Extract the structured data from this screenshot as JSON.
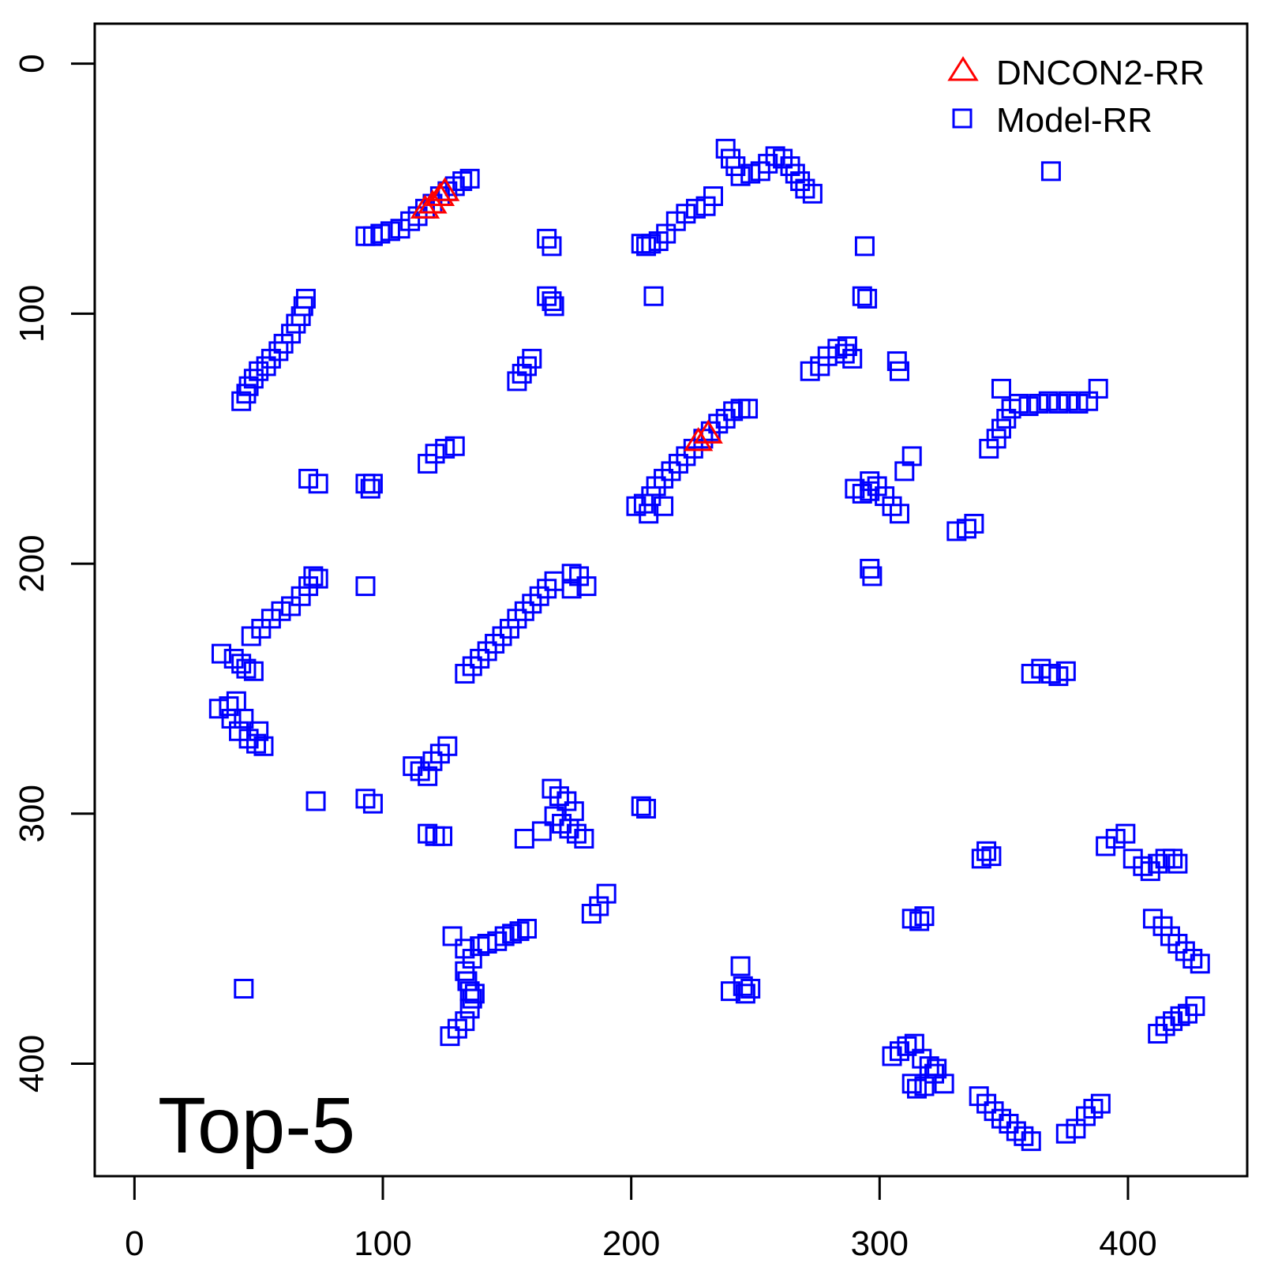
{
  "chart_data": {
    "type": "scatter",
    "title": "",
    "xlabel": "",
    "ylabel": "",
    "annotation": "Top-5",
    "xlim": [
      -16,
      448
    ],
    "ylim": [
      445,
      -16
    ],
    "y_reversed": true,
    "x_ticks": [
      0,
      100,
      200,
      300,
      400
    ],
    "x_tick_labels": [
      "0",
      "100",
      "200",
      "300",
      "400"
    ],
    "y_ticks": [
      0,
      100,
      200,
      300,
      400
    ],
    "y_tick_labels": [
      "0",
      "100",
      "200",
      "300",
      "400"
    ],
    "grid": false,
    "legend_position": "top-right",
    "series": [
      {
        "name": "DNCON2-RR",
        "marker": "triangle",
        "color": "#ff0000",
        "points": [
          [
            117,
            58
          ],
          [
            120,
            56
          ],
          [
            123,
            53
          ],
          [
            125,
            51
          ],
          [
            227,
            151
          ],
          [
            231,
            148
          ]
        ]
      },
      {
        "name": "Model-RR",
        "marker": "square",
        "color": "#0000ff",
        "points": [
          [
            43,
            135
          ],
          [
            45,
            132
          ],
          [
            46,
            129
          ],
          [
            48,
            126
          ],
          [
            50,
            123
          ],
          [
            53,
            121
          ],
          [
            55,
            118
          ],
          [
            58,
            115
          ],
          [
            60,
            112
          ],
          [
            63,
            108
          ],
          [
            65,
            104
          ],
          [
            67,
            101
          ],
          [
            68,
            97
          ],
          [
            69,
            94
          ],
          [
            93,
            69
          ],
          [
            96,
            69
          ],
          [
            99,
            68
          ],
          [
            103,
            67
          ],
          [
            107,
            66
          ],
          [
            111,
            63
          ],
          [
            114,
            61
          ],
          [
            117,
            58
          ],
          [
            120,
            56
          ],
          [
            123,
            53
          ],
          [
            126,
            51
          ],
          [
            129,
            49
          ],
          [
            132,
            47
          ],
          [
            135,
            46
          ],
          [
            166,
            70
          ],
          [
            168,
            73
          ],
          [
            166,
            93
          ],
          [
            168,
            95
          ],
          [
            169,
            97
          ],
          [
            154,
            127
          ],
          [
            156,
            124
          ],
          [
            158,
            121
          ],
          [
            160,
            118
          ],
          [
            70,
            166
          ],
          [
            74,
            168
          ],
          [
            93,
            168
          ],
          [
            95,
            170
          ],
          [
            96,
            168
          ],
          [
            118,
            160
          ],
          [
            121,
            156
          ],
          [
            125,
            154
          ],
          [
            129,
            153
          ],
          [
            204,
            72
          ],
          [
            206,
            73
          ],
          [
            208,
            72
          ],
          [
            211,
            71
          ],
          [
            214,
            68
          ],
          [
            218,
            63
          ],
          [
            222,
            60
          ],
          [
            226,
            58
          ],
          [
            230,
            57
          ],
          [
            233,
            53
          ],
          [
            209,
            93
          ],
          [
            238,
            34
          ],
          [
            240,
            38
          ],
          [
            242,
            41
          ],
          [
            244,
            45
          ],
          [
            248,
            44
          ],
          [
            252,
            43
          ],
          [
            255,
            40
          ],
          [
            258,
            37
          ],
          [
            261,
            38
          ],
          [
            264,
            41
          ],
          [
            266,
            44
          ],
          [
            268,
            47
          ],
          [
            270,
            50
          ],
          [
            273,
            52
          ],
          [
            294,
            73
          ],
          [
            293,
            93
          ],
          [
            295,
            94
          ],
          [
            272,
            123
          ],
          [
            276,
            121
          ],
          [
            279,
            117
          ],
          [
            283,
            114
          ],
          [
            286,
            116
          ],
          [
            289,
            118
          ],
          [
            287,
            113
          ],
          [
            307,
            119
          ],
          [
            308,
            123
          ],
          [
            369,
            43
          ],
          [
            344,
            154
          ],
          [
            347,
            150
          ],
          [
            349,
            146
          ],
          [
            351,
            142
          ],
          [
            353,
            138
          ],
          [
            356,
            136
          ],
          [
            360,
            137
          ],
          [
            364,
            136
          ],
          [
            368,
            135
          ],
          [
            372,
            136
          ],
          [
            376,
            135
          ],
          [
            380,
            136
          ],
          [
            384,
            135
          ],
          [
            388,
            130
          ],
          [
            349,
            130
          ],
          [
            202,
            177
          ],
          [
            205,
            176
          ],
          [
            208,
            173
          ],
          [
            210,
            169
          ],
          [
            213,
            166
          ],
          [
            216,
            163
          ],
          [
            219,
            160
          ],
          [
            222,
            157
          ],
          [
            225,
            154
          ],
          [
            229,
            150
          ],
          [
            232,
            147
          ],
          [
            235,
            144
          ],
          [
            238,
            142
          ],
          [
            241,
            139
          ],
          [
            244,
            138
          ],
          [
            247,
            138
          ],
          [
            207,
            180
          ],
          [
            213,
            177
          ],
          [
            290,
            170
          ],
          [
            293,
            172
          ],
          [
            296,
            171
          ],
          [
            299,
            169
          ],
          [
            302,
            173
          ],
          [
            305,
            177
          ],
          [
            308,
            180
          ],
          [
            310,
            163
          ],
          [
            313,
            157
          ],
          [
            296,
            167
          ],
          [
            331,
            187
          ],
          [
            335,
            186
          ],
          [
            338,
            184
          ],
          [
            296,
            202
          ],
          [
            297,
            205
          ],
          [
            47,
            229
          ],
          [
            51,
            226
          ],
          [
            55,
            222
          ],
          [
            59,
            219
          ],
          [
            63,
            217
          ],
          [
            67,
            213
          ],
          [
            70,
            209
          ],
          [
            72,
            205
          ],
          [
            74,
            206
          ],
          [
            93,
            209
          ],
          [
            133,
            244
          ],
          [
            136,
            241
          ],
          [
            139,
            238
          ],
          [
            142,
            235
          ],
          [
            145,
            232
          ],
          [
            148,
            229
          ],
          [
            151,
            226
          ],
          [
            154,
            222
          ],
          [
            157,
            219
          ],
          [
            160,
            216
          ],
          [
            163,
            213
          ],
          [
            166,
            210
          ],
          [
            169,
            207
          ],
          [
            176,
            204
          ],
          [
            179,
            205
          ],
          [
            176,
            210
          ],
          [
            182,
            209
          ],
          [
            35,
            236
          ],
          [
            40,
            238
          ],
          [
            43,
            240
          ],
          [
            45,
            242
          ],
          [
            48,
            243
          ],
          [
            34,
            258
          ],
          [
            38,
            257
          ],
          [
            41,
            255
          ],
          [
            39,
            262
          ],
          [
            42,
            267
          ],
          [
            46,
            270
          ],
          [
            49,
            272
          ],
          [
            52,
            273
          ],
          [
            50,
            267
          ],
          [
            44,
            262
          ],
          [
            112,
            281
          ],
          [
            115,
            283
          ],
          [
            118,
            285
          ],
          [
            120,
            279
          ],
          [
            123,
            276
          ],
          [
            126,
            273
          ],
          [
            73,
            295
          ],
          [
            93,
            294
          ],
          [
            96,
            296
          ],
          [
            118,
            308
          ],
          [
            121,
            309
          ],
          [
            124,
            309
          ],
          [
            168,
            290
          ],
          [
            171,
            293
          ],
          [
            174,
            295
          ],
          [
            177,
            299
          ],
          [
            169,
            301
          ],
          [
            172,
            304
          ],
          [
            175,
            306
          ],
          [
            178,
            308
          ],
          [
            181,
            310
          ],
          [
            164,
            307
          ],
          [
            157,
            310
          ],
          [
            204,
            297
          ],
          [
            206,
            298
          ],
          [
            44,
            370
          ],
          [
            128,
            349
          ],
          [
            133,
            354
          ],
          [
            136,
            358
          ],
          [
            139,
            353
          ],
          [
            142,
            352
          ],
          [
            146,
            351
          ],
          [
            149,
            349
          ],
          [
            152,
            348
          ],
          [
            155,
            347
          ],
          [
            158,
            346
          ],
          [
            133,
            363
          ],
          [
            134,
            367
          ],
          [
            135,
            371
          ],
          [
            136,
            374
          ],
          [
            137,
            372
          ],
          [
            135,
            378
          ],
          [
            133,
            383
          ],
          [
            130,
            386
          ],
          [
            127,
            389
          ],
          [
            184,
            340
          ],
          [
            187,
            337
          ],
          [
            190,
            332
          ],
          [
            244,
            361
          ],
          [
            245,
            369
          ],
          [
            246,
            372
          ],
          [
            248,
            370
          ],
          [
            240,
            371
          ],
          [
            361,
            244
          ],
          [
            365,
            242
          ],
          [
            369,
            244
          ],
          [
            372,
            245
          ],
          [
            375,
            243
          ],
          [
            341,
            318
          ],
          [
            343,
            315
          ],
          [
            345,
            317
          ],
          [
            391,
            313
          ],
          [
            395,
            310
          ],
          [
            399,
            308
          ],
          [
            402,
            318
          ],
          [
            406,
            321
          ],
          [
            409,
            323
          ],
          [
            412,
            320
          ],
          [
            415,
            318
          ],
          [
            418,
            318
          ],
          [
            420,
            320
          ],
          [
            410,
            342
          ],
          [
            414,
            345
          ],
          [
            417,
            349
          ],
          [
            420,
            352
          ],
          [
            423,
            355
          ],
          [
            426,
            358
          ],
          [
            429,
            360
          ],
          [
            412,
            388
          ],
          [
            415,
            385
          ],
          [
            418,
            383
          ],
          [
            421,
            381
          ],
          [
            424,
            380
          ],
          [
            427,
            377
          ],
          [
            313,
            342
          ],
          [
            316,
            343
          ],
          [
            318,
            341
          ],
          [
            305,
            397
          ],
          [
            308,
            395
          ],
          [
            311,
            393
          ],
          [
            314,
            392
          ],
          [
            317,
            398
          ],
          [
            320,
            401
          ],
          [
            322,
            404
          ],
          [
            318,
            409
          ],
          [
            315,
            410
          ],
          [
            313,
            408
          ],
          [
            326,
            408
          ],
          [
            323,
            402
          ],
          [
            340,
            413
          ],
          [
            343,
            416
          ],
          [
            346,
            419
          ],
          [
            349,
            422
          ],
          [
            352,
            424
          ],
          [
            355,
            427
          ],
          [
            358,
            429
          ],
          [
            361,
            431
          ],
          [
            375,
            428
          ],
          [
            379,
            426
          ],
          [
            383,
            421
          ],
          [
            386,
            418
          ],
          [
            389,
            416
          ]
        ]
      }
    ]
  }
}
